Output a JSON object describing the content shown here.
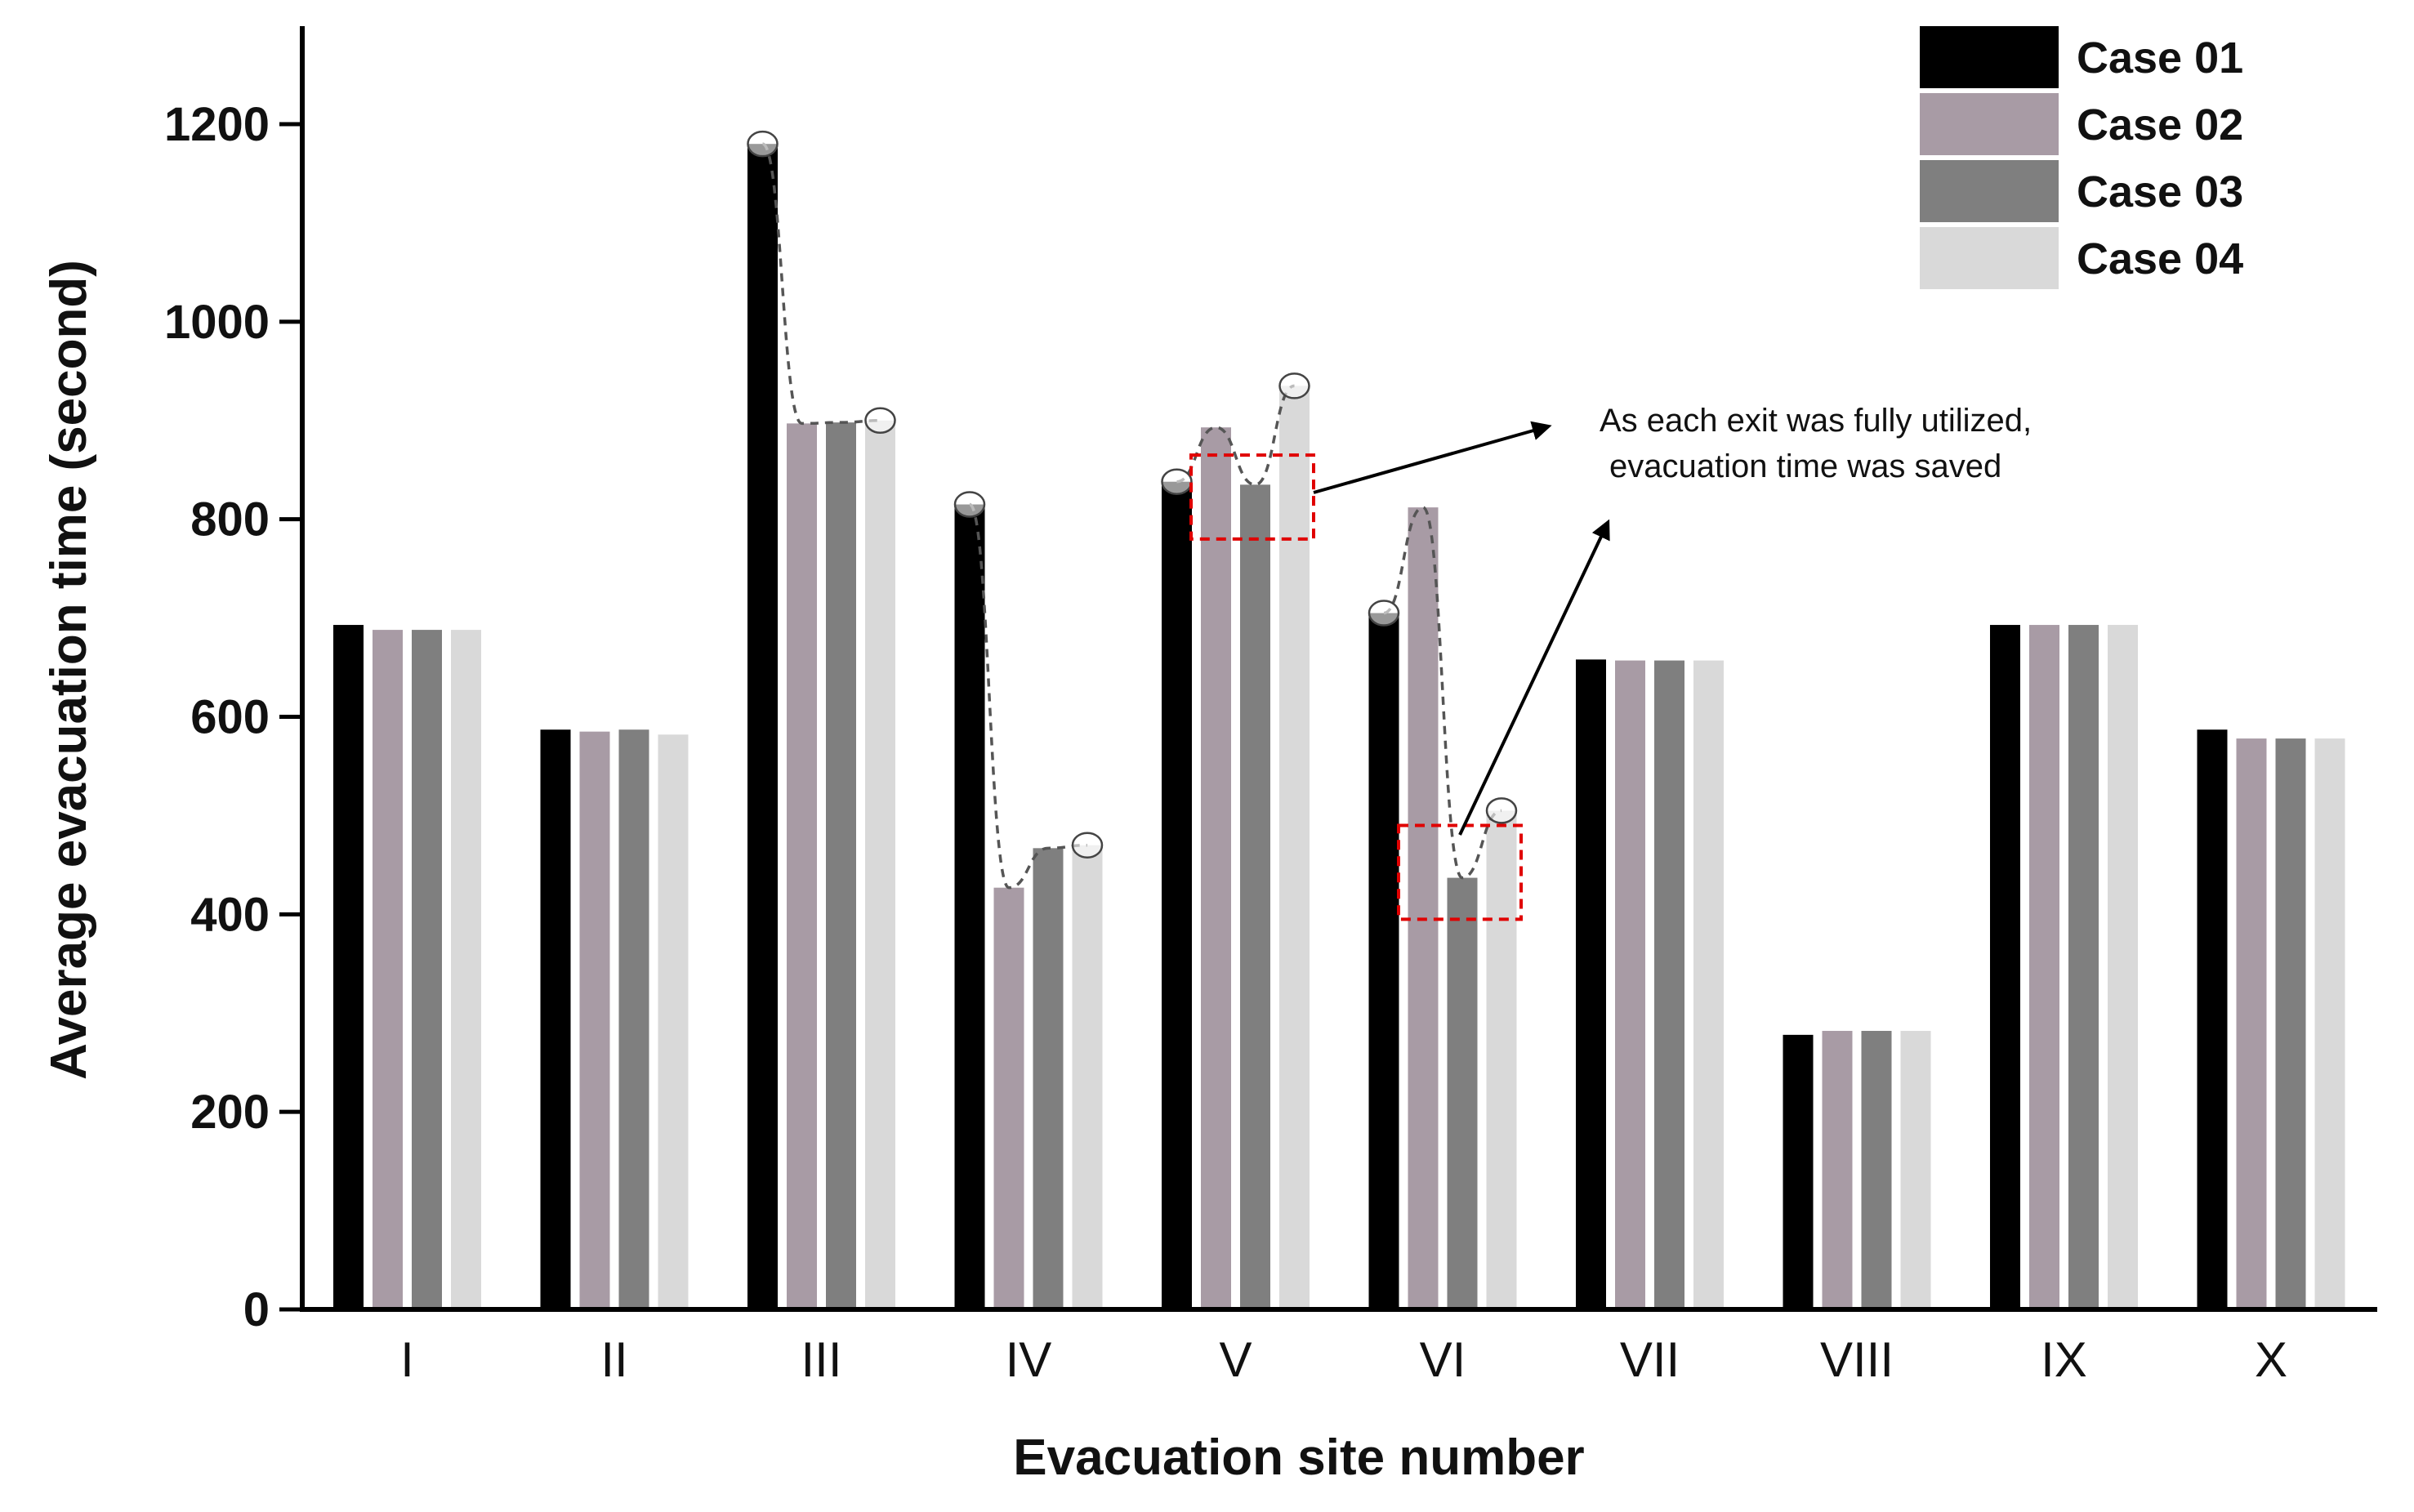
{
  "chart_data": {
    "type": "bar",
    "title": "",
    "xlabel": "Evacuation site number",
    "ylabel": "Average evacuation time (second)",
    "ylim": [
      0,
      1300
    ],
    "yticks": [
      0,
      200,
      400,
      600,
      800,
      1000,
      1200
    ],
    "grid": false,
    "legend_position": "top-right",
    "categories": [
      "I",
      "II",
      "III",
      "IV",
      "V",
      "VI",
      "VII",
      "VIII",
      "IX",
      "X"
    ],
    "series": [
      {
        "name": "Case 01",
        "color": "#000000",
        "values": [
          693,
          587,
          1180,
          815,
          838,
          705,
          658,
          278,
          693,
          587
        ]
      },
      {
        "name": "Case 02",
        "color": "#a89ba5",
        "values": [
          688,
          585,
          897,
          427,
          893,
          812,
          657,
          282,
          693,
          578
        ]
      },
      {
        "name": "Case 03",
        "color": "#7f7f7f",
        "values": [
          688,
          587,
          898,
          467,
          835,
          437,
          657,
          282,
          693,
          578
        ]
      },
      {
        "name": "Case 04",
        "color": "#d9d9d9",
        "values": [
          688,
          582,
          900,
          470,
          935,
          505,
          657,
          282,
          693,
          578
        ]
      }
    ],
    "annotations": {
      "text_line1": "As each exit was fully utilized,",
      "text_line2": "evacuation time was saved",
      "highlight_color": "#e00000"
    }
  }
}
